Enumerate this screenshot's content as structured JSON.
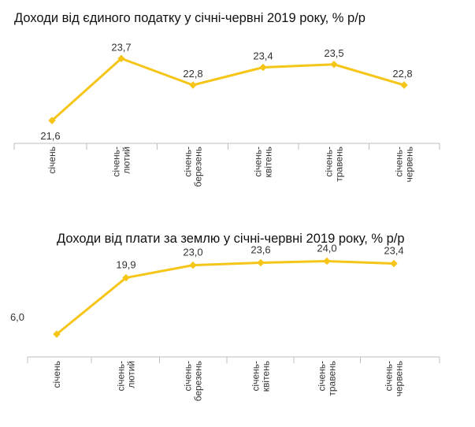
{
  "chart_data": [
    {
      "type": "line",
      "title": "Доходи від єдиного податку у січні-червні 2019 року, % р/р",
      "categories": [
        [
          "січень"
        ],
        [
          "січень-",
          "лютий"
        ],
        [
          "січень-",
          "березень"
        ],
        [
          "січень-",
          "квітень"
        ],
        [
          "січень-",
          "травень"
        ],
        [
          "січень-",
          "червень"
        ]
      ],
      "values": [
        21.6,
        23.7,
        22.8,
        23.4,
        23.5,
        22.8
      ],
      "labels": [
        "21,6",
        "23,7",
        "22,8",
        "23,4",
        "23,5",
        "22,8"
      ],
      "ylim": [
        20.8,
        24.4
      ],
      "xlabel": "",
      "ylabel": "",
      "color": "#F5C518"
    },
    {
      "type": "line",
      "title": "Доходи від плати за землю у січні-червні 2019 року, % р/р",
      "categories": [
        [
          "січень"
        ],
        [
          "січень-",
          "лютий"
        ],
        [
          "січень-",
          "березень"
        ],
        [
          "січень-",
          "квітень"
        ],
        [
          "січень-",
          "травень"
        ],
        [
          "січень-",
          "червень"
        ]
      ],
      "values": [
        6.0,
        19.9,
        23.0,
        23.6,
        24.0,
        23.4
      ],
      "labels": [
        "6,0",
        "19,9",
        "23,0",
        "23,6",
        "24,0",
        "23,4"
      ],
      "ylim": [
        0,
        27
      ],
      "xlabel": "",
      "ylabel": "",
      "color": "#F5C518"
    }
  ]
}
